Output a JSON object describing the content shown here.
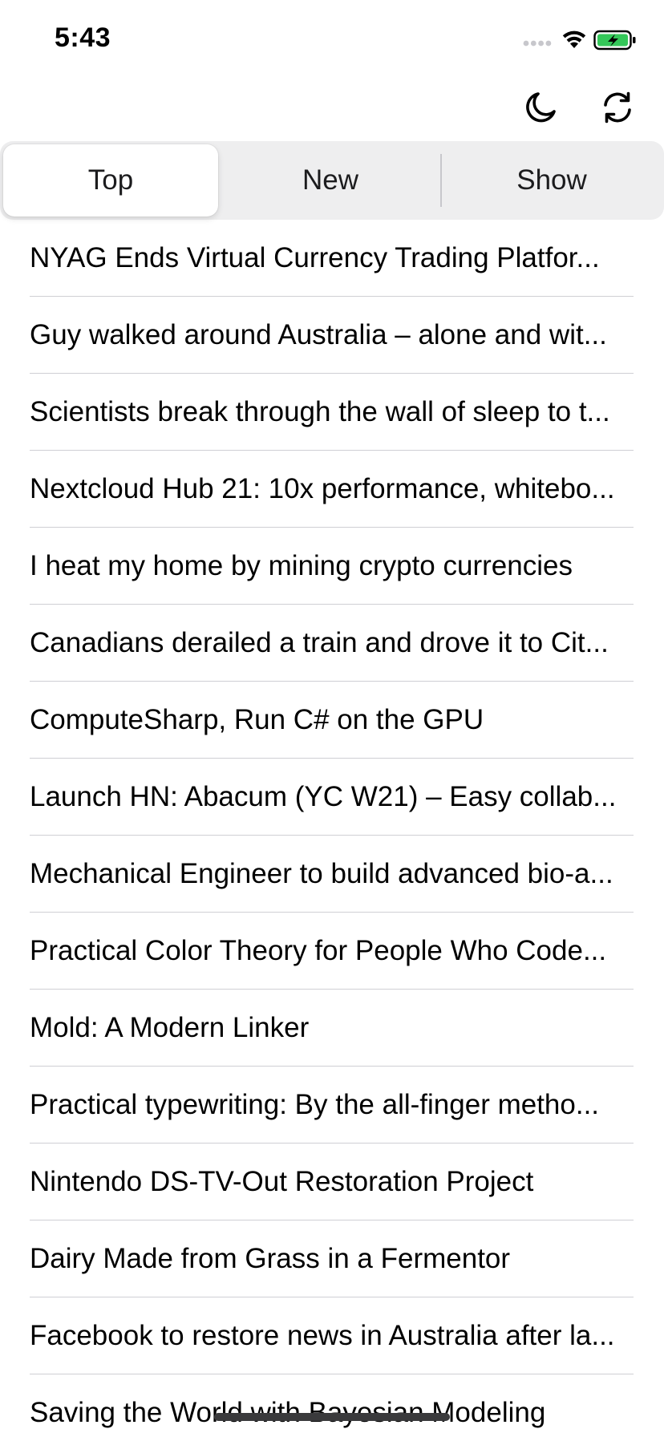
{
  "status_bar": {
    "time": "5:43",
    "icons": [
      "signal-dots-icon",
      "wifi-icon",
      "battery-charging-icon"
    ],
    "battery_color": "#34c759"
  },
  "toolbar": {
    "icons": [
      "moon-icon",
      "refresh-icon"
    ]
  },
  "segments": [
    {
      "label": "Top",
      "selected": true
    },
    {
      "label": "New",
      "selected": false
    },
    {
      "label": "Show",
      "selected": false
    }
  ],
  "stories": [
    {
      "title": "NYAG Ends Virtual Currency Trading Platfor..."
    },
    {
      "title": "Guy walked around Australia – alone and wit..."
    },
    {
      "title": "Scientists break through the wall of sleep to t..."
    },
    {
      "title": "Nextcloud Hub 21: 10x performance, whitebo..."
    },
    {
      "title": "I heat my home by mining crypto currencies"
    },
    {
      "title": "Canadians derailed a train and drove it to Cit..."
    },
    {
      "title": "ComputeSharp, Run C# on the GPU"
    },
    {
      "title": "Launch HN: Abacum (YC W21) – Easy collab..."
    },
    {
      "title": "Mechanical Engineer to build advanced bio-a..."
    },
    {
      "title": "Practical Color Theory for People Who Code..."
    },
    {
      "title": "Mold: A Modern Linker"
    },
    {
      "title": "Practical typewriting: By the all-finger metho..."
    },
    {
      "title": "Nintendo DS-TV-Out Restoration Project"
    },
    {
      "title": "Dairy Made from Grass in a Fermentor"
    },
    {
      "title": "Facebook to restore news in Australia after la..."
    },
    {
      "title": "Saving the World with Bayesian Modeling"
    }
  ]
}
